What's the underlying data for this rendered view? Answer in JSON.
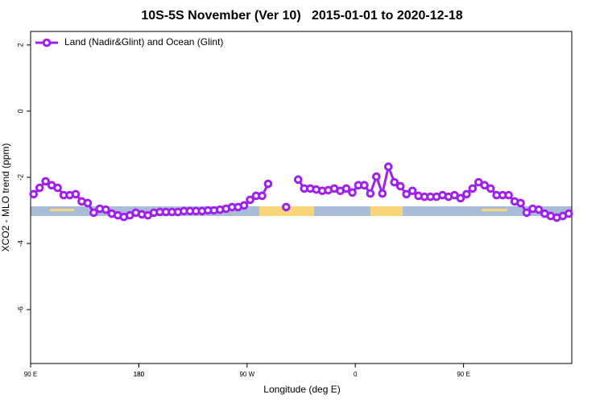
{
  "chart_data": {
    "type": "line",
    "title": "10S-5S November (Ver 10)   2015-01-01 to 2020-12-18",
    "xlabel": "Longitude (deg E)",
    "ylabel": "XCO2 - MLO trend (ppm)",
    "x": [
      92.5,
      97.5,
      102.5,
      107.5,
      112.5,
      117.5,
      122.5,
      127.5,
      132.5,
      137.5,
      142.5,
      147.5,
      152.5,
      157.5,
      162.5,
      167.5,
      172.5,
      177.5,
      182.5,
      187.5,
      192.5,
      197.5,
      202.5,
      207.5,
      212.5,
      217.5,
      222.5,
      227.5,
      232.5,
      237.5,
      242.5,
      247.5,
      252.5,
      257.5,
      262.5,
      267.5,
      272.5,
      277.5,
      282.5,
      287.5,
      292.5,
      297.5,
      302.5,
      307.5,
      312.5,
      317.5,
      322.5,
      327.5,
      332.5,
      337.5,
      342.5,
      347.5,
      352.5,
      357.5,
      362.5,
      367.5,
      372.5,
      377.5,
      382.5,
      387.5,
      392.5,
      397.5,
      402.5,
      407.5,
      412.5,
      417.5,
      422.5,
      427.5,
      432.5,
      437.5,
      442.5,
      447.5,
      452.5,
      457.5,
      462.5,
      467.5,
      472.5,
      477.5,
      482.5,
      487.5,
      492.5,
      497.5,
      502.5,
      507.5,
      512.5,
      517.5,
      522.5,
      527.5,
      532.5,
      537.5
    ],
    "series": [
      {
        "name": "Land (Nadir&Glint) and Ocean (Glint)",
        "color": "#a020f0",
        "values": [
          -2.51,
          -2.32,
          -2.12,
          -2.24,
          -2.32,
          -2.54,
          -2.54,
          -2.51,
          -2.73,
          -2.78,
          -3.07,
          -2.95,
          -2.98,
          -3.1,
          -3.15,
          -3.2,
          -3.15,
          -3.07,
          -3.12,
          -3.15,
          -3.07,
          -3.05,
          -3.05,
          -3.05,
          -3.05,
          -3.02,
          -3.02,
          -3.02,
          -3.02,
          -3.0,
          -3.0,
          -2.98,
          -2.95,
          -2.9,
          -2.9,
          -2.85,
          -2.68,
          -2.56,
          -2.56,
          -2.2,
          null,
          null,
          -2.9,
          null,
          -2.07,
          -2.34,
          -2.34,
          -2.37,
          -2.41,
          -2.39,
          -2.34,
          -2.41,
          -2.34,
          -2.46,
          -2.24,
          -2.24,
          -2.49,
          -1.98,
          -2.49,
          -1.68,
          -2.15,
          -2.27,
          -2.51,
          -2.41,
          -2.56,
          -2.59,
          -2.59,
          -2.59,
          -2.54,
          -2.59,
          -2.54,
          -2.63,
          -2.51,
          -2.34,
          -2.15,
          -2.24,
          -2.34,
          -2.54,
          -2.54,
          -2.54,
          -2.73,
          -2.78,
          -3.07,
          -2.95,
          -2.98,
          -3.1,
          -3.17,
          -3.22,
          -3.17,
          -3.1
        ]
      }
    ],
    "xlim": [
      90,
      540
    ],
    "xticks": [
      {
        "value": 90,
        "label": "90 E"
      },
      180,
      {
        "value": 270,
        "label": "90 W"
      },
      {
        "value": 360,
        "label": "0"
      },
      {
        "value": 450,
        "label": "90 E"
      },
      180.0001
    ],
    "ylim": [
      -7.63,
      2.41
    ],
    "yticks": [
      2,
      0,
      -2,
      -4,
      -6
    ],
    "legend": "top-left"
  }
}
